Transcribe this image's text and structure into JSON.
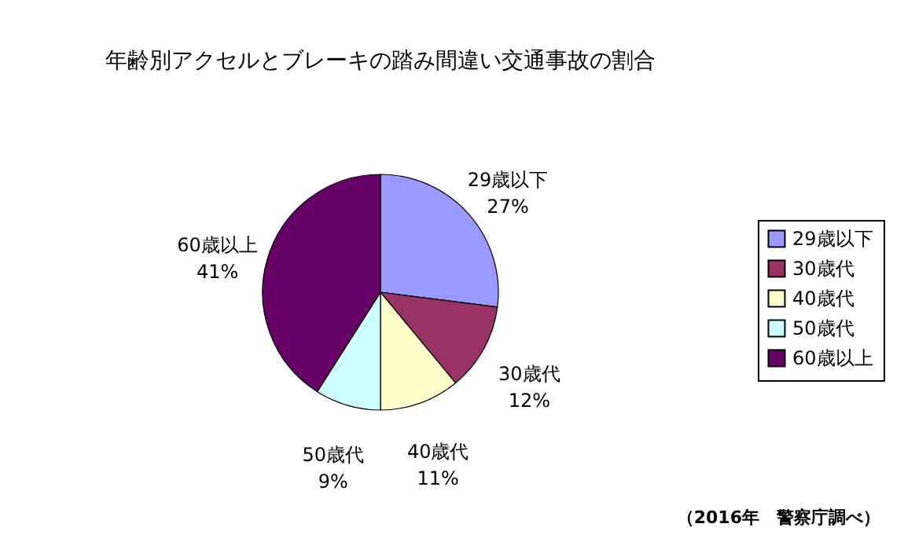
{
  "chart_data": {
    "type": "pie",
    "title": "年齢別アクセルとブレーキの踏み間違い交通事故の割合",
    "categories": [
      "29歳以下",
      "30歳代",
      "40歳代",
      "50歳代",
      "60歳以上"
    ],
    "values": [
      27,
      12,
      11,
      9,
      41
    ],
    "value_labels": [
      "27%",
      "12%",
      "11%",
      "9%",
      "41%"
    ],
    "colors": [
      "#9999ff",
      "#993366",
      "#ffffcc",
      "#ccffff",
      "#660066"
    ],
    "legend": "right",
    "annotations": [
      "（2016年　警察庁調べ）"
    ]
  }
}
